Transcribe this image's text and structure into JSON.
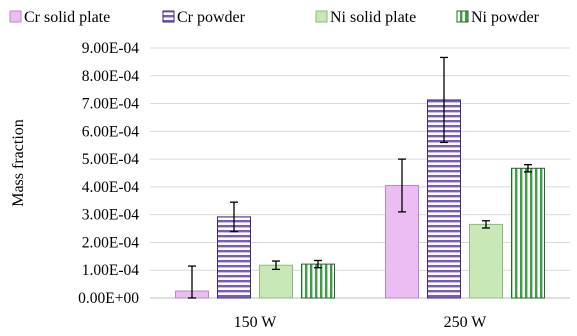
{
  "chart_data": {
    "type": "bar",
    "title": "",
    "xlabel": "",
    "ylabel": "Mass fraction",
    "ylim": [
      0,
      0.0009
    ],
    "yticks": [
      "0.00E+00",
      "1.00E-04",
      "2.00E-04",
      "3.00E-04",
      "4.00E-04",
      "5.00E-04",
      "6.00E-04",
      "7.00E-04",
      "8.00E-04",
      "9.00E-04"
    ],
    "ytick_values": [
      0,
      0.0001,
      0.0002,
      0.0003,
      0.0004,
      0.0005,
      0.0006,
      0.0007,
      0.0008,
      0.0009
    ],
    "categories": [
      "150 W",
      "250 W"
    ],
    "grid": true,
    "legend_position": "top",
    "series": [
      {
        "name": "Cr solid plate",
        "values": [
          2.5e-05,
          0.000405
        ],
        "errors": [
          9e-05,
          9.5e-05
        ],
        "fill": "#ecbdf2",
        "pattern": "solid"
      },
      {
        "name": "Cr powder",
        "values": [
          0.000292,
          0.000713
        ],
        "errors": [
          5.3e-05,
          0.000153
        ],
        "fill": "#7a5bbd",
        "pattern": "horizontal-stripes"
      },
      {
        "name": "Ni solid plate",
        "values": [
          0.000118,
          0.000265
        ],
        "errors": [
          1.5e-05,
          1.3e-05
        ],
        "fill": "#c9e8b7",
        "pattern": "solid"
      },
      {
        "name": "Ni powder",
        "values": [
          0.000122,
          0.000467
        ],
        "errors": [
          1.3e-05,
          1.3e-05
        ],
        "fill": "#3e9e46",
        "pattern": "vertical-stripes"
      }
    ]
  }
}
